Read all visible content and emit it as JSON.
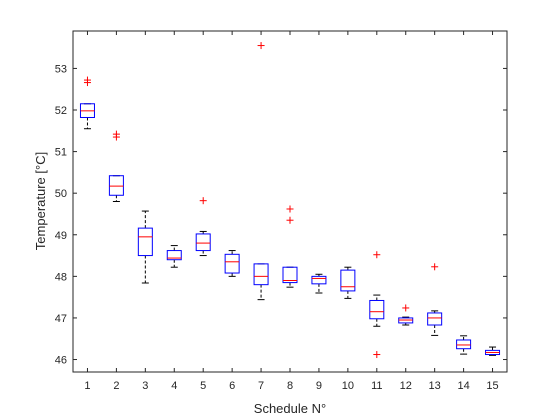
{
  "chart_data": {
    "type": "boxplot",
    "xlabel": "Schedule N°",
    "ylabel": "Temperature [°C]",
    "categories": [
      "1",
      "2",
      "3",
      "4",
      "5",
      "6",
      "7",
      "8",
      "9",
      "10",
      "11",
      "12",
      "13",
      "14",
      "15"
    ],
    "xlim": [
      0.5,
      15.5
    ],
    "ylim": [
      45.7,
      53.9
    ],
    "yticks": [
      46,
      47,
      48,
      49,
      50,
      51,
      52,
      53
    ],
    "ytick_labels": [
      "46",
      "47",
      "48",
      "49",
      "50",
      "51",
      "52",
      "53"
    ],
    "grid": false,
    "legend": "none",
    "colors": {
      "box": "#0000ff",
      "median": "#ff0000",
      "whisker": "#000000",
      "outlier": "#ff0000",
      "axis": "#262626"
    },
    "boxes": [
      {
        "category": "1",
        "whisker_low": 51.55,
        "q1": 51.82,
        "median": 51.98,
        "q3": 52.15,
        "whisker_high": 52.15,
        "outliers": [
          52.72,
          52.66
        ]
      },
      {
        "category": "2",
        "whisker_low": 49.8,
        "q1": 49.95,
        "median": 50.17,
        "q3": 50.42,
        "whisker_high": 50.42,
        "outliers": [
          51.42,
          51.35
        ]
      },
      {
        "category": "3",
        "whisker_low": 47.84,
        "q1": 48.5,
        "median": 48.95,
        "q3": 49.16,
        "whisker_high": 49.57,
        "outliers": []
      },
      {
        "category": "4",
        "whisker_low": 48.22,
        "q1": 48.4,
        "median": 48.44,
        "q3": 48.62,
        "whisker_high": 48.74,
        "outliers": []
      },
      {
        "category": "5",
        "whisker_low": 48.5,
        "q1": 48.62,
        "median": 48.8,
        "q3": 49.02,
        "whisker_high": 49.08,
        "outliers": [
          49.82
        ]
      },
      {
        "category": "6",
        "whisker_low": 48.0,
        "q1": 48.08,
        "median": 48.35,
        "q3": 48.53,
        "whisker_high": 48.62,
        "outliers": []
      },
      {
        "category": "7",
        "whisker_low": 47.44,
        "q1": 47.8,
        "median": 48.0,
        "q3": 48.3,
        "whisker_high": 48.3,
        "outliers": [
          53.55
        ]
      },
      {
        "category": "8",
        "whisker_low": 47.74,
        "q1": 47.85,
        "median": 47.9,
        "q3": 48.22,
        "whisker_high": 48.22,
        "outliers": [
          49.62,
          49.35
        ]
      },
      {
        "category": "9",
        "whisker_low": 47.6,
        "q1": 47.82,
        "median": 47.95,
        "q3": 48.0,
        "whisker_high": 48.05,
        "outliers": []
      },
      {
        "category": "10",
        "whisker_low": 47.47,
        "q1": 47.65,
        "median": 47.75,
        "q3": 48.15,
        "whisker_high": 48.22,
        "outliers": []
      },
      {
        "category": "11",
        "whisker_low": 46.8,
        "q1": 46.98,
        "median": 47.15,
        "q3": 47.42,
        "whisker_high": 47.55,
        "outliers": [
          48.52,
          46.12
        ]
      },
      {
        "category": "12",
        "whisker_low": 46.83,
        "q1": 46.88,
        "median": 46.95,
        "q3": 47.0,
        "whisker_high": 47.02,
        "outliers": [
          47.24
        ]
      },
      {
        "category": "13",
        "whisker_low": 46.58,
        "q1": 46.83,
        "median": 47.0,
        "q3": 47.12,
        "whisker_high": 47.17,
        "outliers": [
          48.23
        ]
      },
      {
        "category": "14",
        "whisker_low": 46.13,
        "q1": 46.26,
        "median": 46.35,
        "q3": 46.47,
        "whisker_high": 46.57,
        "outliers": []
      },
      {
        "category": "15",
        "whisker_low": 46.1,
        "q1": 46.12,
        "median": 46.17,
        "q3": 46.22,
        "whisker_high": 46.3,
        "outliers": []
      }
    ]
  }
}
